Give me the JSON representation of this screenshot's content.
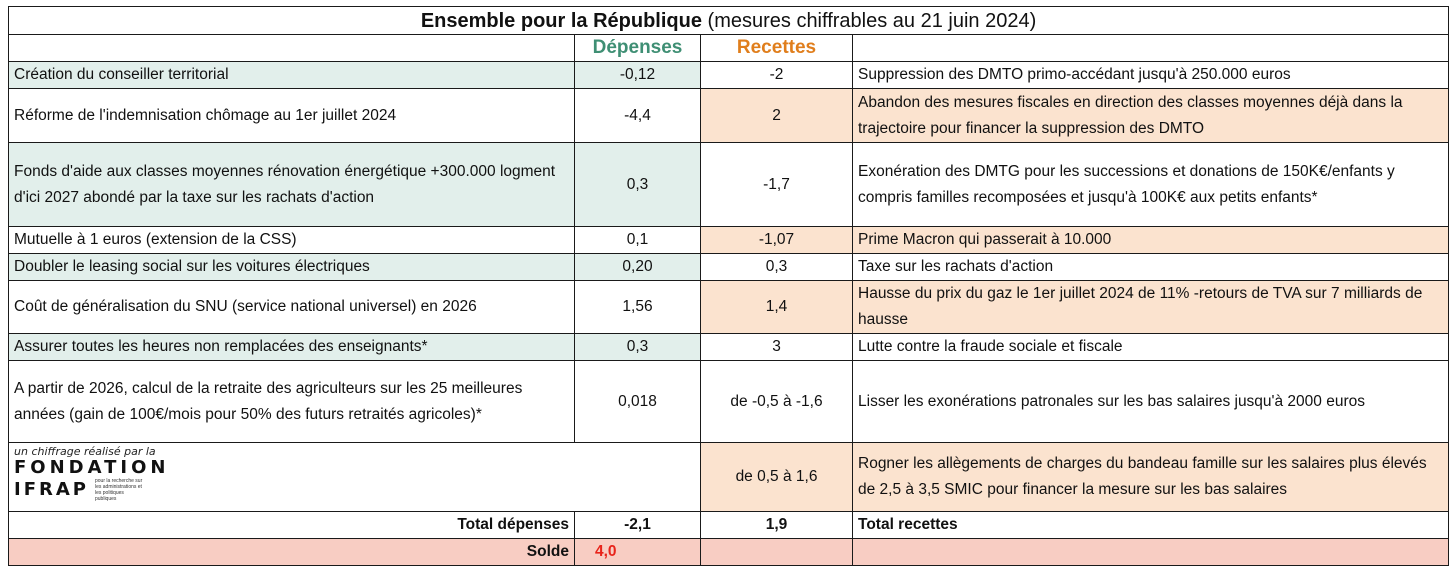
{
  "title": {
    "bold": "Ensemble pour la République",
    "sub": "(mesures chiffrables au 21 juin 2024)"
  },
  "headers": {
    "depenses": "Dépenses",
    "recettes": "Recettes"
  },
  "rows": [
    {
      "left": "Création du conseiller territorial",
      "dep": "-0,12",
      "rec": "-2",
      "right": "Suppression des DMTO primo-accédant jusqu'à 250.000 euros"
    },
    {
      "left": "Réforme de l'indemnisation chômage au 1er juillet 2024",
      "dep": "-4,4",
      "rec": "2",
      "right": "Abandon des mesures fiscales en direction des classes moyennes déjà dans la trajectoire pour financer la suppression des DMTO"
    },
    {
      "left": "Fonds d'aide aux classes moyennes rénovation énergétique +300.000 logment d'ici 2027 abondé par la taxe sur les rachats d'action",
      "dep": "0,3",
      "rec": "-1,7",
      "right": "Exonération des DMTG pour les successions et donations de 150K€/enfants y compris familles recomposées et jusqu'à 100K€ aux petits enfants*"
    },
    {
      "left": "Mutuelle à 1 euros (extension de la CSS)",
      "dep": "0,1",
      "rec": "-1,07",
      "right": "Prime Macron qui passerait à 10.000"
    },
    {
      "left": "Doubler le leasing social sur les voitures électriques",
      "dep": "0,20",
      "rec": "0,3",
      "right": "Taxe sur les rachats d'action"
    },
    {
      "left": "Coût de généralisation du SNU (service national universel) en 2026",
      "dep": "1,56",
      "rec": "1,4",
      "right": "Hausse du prix du gaz le 1er juillet 2024 de 11% -retours de TVA sur 7 milliards de hausse"
    },
    {
      "left": "Assurer toutes les heures non remplacées des enseignants*",
      "dep": "0,3",
      "rec": "3",
      "right": "Lutte contre la fraude sociale et fiscale"
    },
    {
      "left": "A partir de 2026, calcul de la retraite des agriculteurs sur les 25 meilleures années (gain de 100€/mois pour 50% des futurs retraités agricoles)*",
      "dep": "0,018",
      "rec": "de -0,5 à -1,6",
      "right": "Lisser les exonérations patronales sur les bas salaires jusqu'à 2000 euros"
    }
  ],
  "logo": {
    "caption": "un chiffrage réalisé par la",
    "line1": "FONDATION",
    "line2": "IFRAP",
    "tagline": "pour la recherche sur les administrations et les politiques publiques"
  },
  "last_row": {
    "rec": "de 0,5 à 1,6",
    "right": "Rogner les allègements de charges du bandeau famille sur les salaires plus élevés de 2,5 à 3,5 SMIC pour financer la mesure sur les bas salaires"
  },
  "totals": {
    "dep_label": "Total dépenses",
    "dep_value": "-2,1",
    "rec_value": "1,9",
    "rec_label": "Total recettes"
  },
  "solde": {
    "label": "Solde",
    "value": "4,0"
  },
  "colors": {
    "green_fill": "#e2efeb",
    "peach_fill": "#fbe3cf",
    "salmon_fill": "#f8cdc3",
    "depenses_header": "#3f8f74",
    "recettes_header": "#e07e1c",
    "solde_value": "#e8231a"
  }
}
